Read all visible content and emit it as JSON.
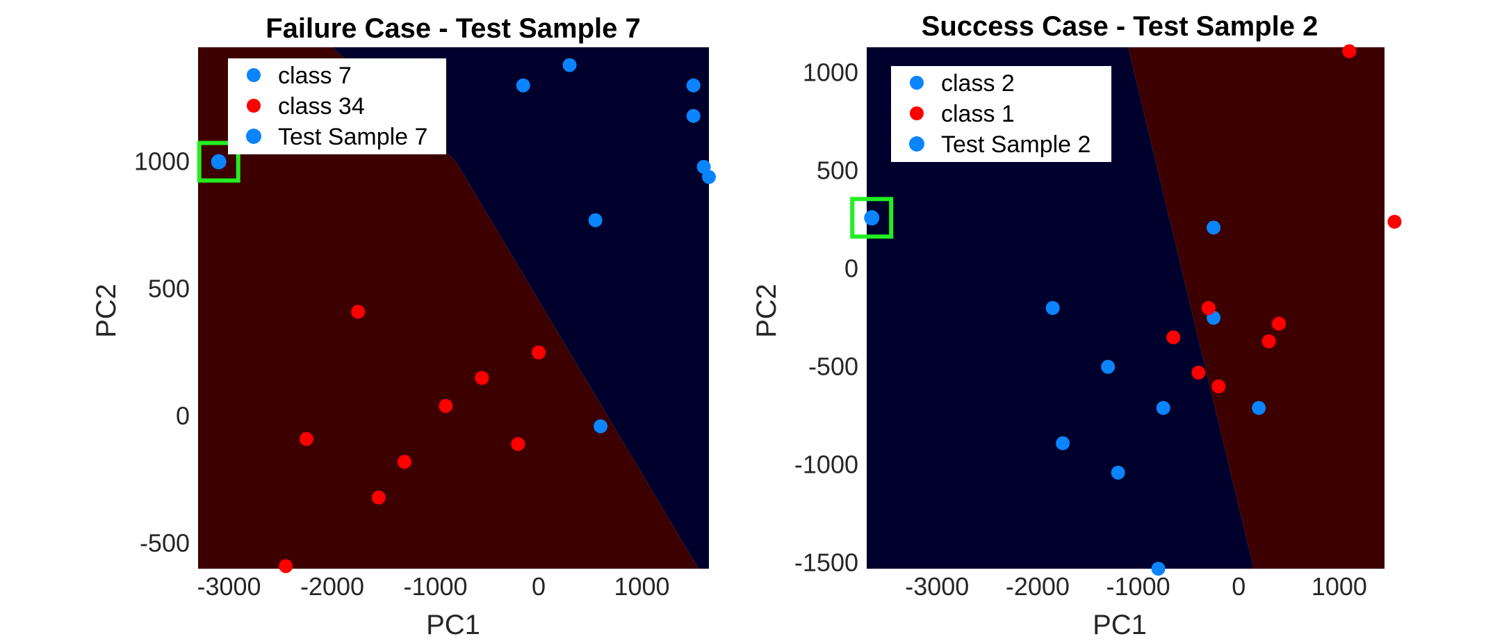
{
  "figure": {
    "background": "#ffffff"
  },
  "chart_data": [
    {
      "type": "scatter",
      "title": "Failure Case - Test Sample 7",
      "xlabel": "PC1",
      "ylabel": "PC2",
      "xlim": [
        -3300,
        1650
      ],
      "ylim": [
        -600,
        1450
      ],
      "xticks": [
        -3000,
        -2000,
        -1000,
        0,
        1000
      ],
      "yticks": [
        -500,
        0,
        500,
        1000
      ],
      "xtick_labels": [
        "-3000",
        "-2000",
        "-1000",
        "0",
        "1000"
      ],
      "ytick_labels": [
        "-500",
        "0",
        "500",
        "1000"
      ],
      "grid": false,
      "legend_position": "top-left",
      "region_colors": {
        "class_a": "#3d0000",
        "class_b": "#00002d"
      },
      "decision_boundary": [
        [
          -2000,
          1450
        ],
        [
          -800,
          1000
        ],
        [
          1550,
          -600
        ]
      ],
      "highlight_color": "#22ee22",
      "series": [
        {
          "name": "class 7",
          "color": "#0a84ff",
          "x": [
            -150,
            300,
            1500,
            1500,
            1600,
            1650,
            550,
            600
          ],
          "y": [
            1300,
            1380,
            1300,
            1180,
            980,
            940,
            770,
            -40
          ]
        },
        {
          "name": "class 34",
          "color": "#ff0000",
          "x": [
            -1750,
            0,
            -550,
            -900,
            -200,
            -2250,
            -1300,
            -1550,
            -2450
          ],
          "y": [
            410,
            250,
            150,
            40,
            -110,
            -90,
            -180,
            -320,
            -590
          ]
        },
        {
          "name": "Test Sample 7",
          "color": "#0a84ff",
          "x": [
            -3100
          ],
          "y": [
            1000
          ],
          "highlighted": true
        }
      ]
    },
    {
      "type": "scatter",
      "title": "Success Case - Test Sample 2",
      "xlabel": "PC1",
      "ylabel": "PC2",
      "xlim": [
        -3700,
        1450
      ],
      "ylim": [
        -1530,
        1130
      ],
      "xticks": [
        -3000,
        -2000,
        -1000,
        0,
        1000
      ],
      "yticks": [
        -1500,
        -1000,
        -500,
        0,
        500,
        1000
      ],
      "xtick_labels": [
        "-3000",
        "-2000",
        "-1000",
        "0",
        "1000"
      ],
      "ytick_labels": [
        "-1500",
        "-1000",
        "-500",
        "0",
        "500",
        "1000"
      ],
      "grid": false,
      "legend_position": "top-left",
      "region_colors": {
        "class_a": "#00002d",
        "class_b": "#3d0000"
      },
      "decision_boundary": [
        [
          -1100,
          1130
        ],
        [
          150,
          -1530
        ]
      ],
      "highlight_color": "#22ee22",
      "series": [
        {
          "name": "class 2",
          "color": "#0a84ff",
          "x": [
            -250,
            -1850,
            -250,
            -1300,
            -750,
            200,
            -1750,
            -1200,
            -800
          ],
          "y": [
            210,
            -200,
            -250,
            -500,
            -710,
            -710,
            -890,
            -1040,
            -1530
          ]
        },
        {
          "name": "class 1",
          "color": "#ff0000",
          "x": [
            1100,
            1550,
            -300,
            400,
            -650,
            300,
            -400,
            -200
          ],
          "y": [
            1110,
            240,
            -200,
            -280,
            -350,
            -370,
            -530,
            -600
          ]
        },
        {
          "name": "Test Sample 2",
          "color": "#0a84ff",
          "x": [
            -3650
          ],
          "y": [
            260
          ],
          "highlighted": true
        }
      ]
    }
  ]
}
